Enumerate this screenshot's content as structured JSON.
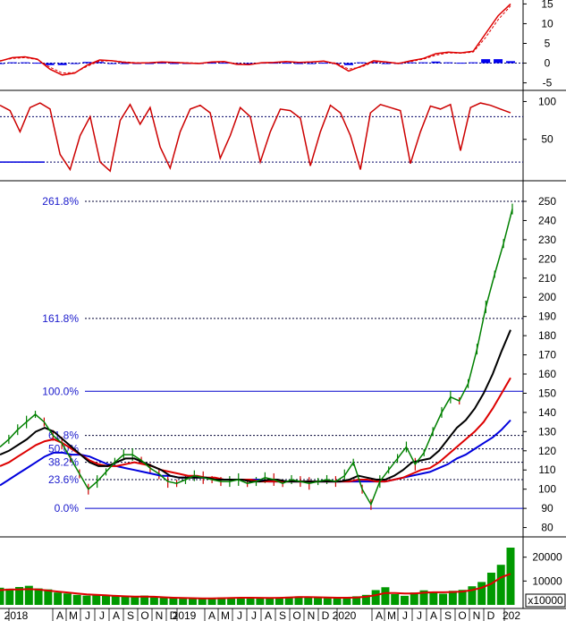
{
  "colors": {
    "price_up": "#008000",
    "price_down": "#cc0000",
    "ma_short": "#000000",
    "ma_mid": "#dd0000",
    "ma_long": "#0000dd",
    "fib_line": "#0000aa",
    "fib_text": "#1a1acc",
    "grid_dotted": "#000066",
    "volume": "#009900",
    "volume_ma": "#dd0000",
    "macd_hist": "#0000ee",
    "macd_line": "#dd0000",
    "stoch_line": "#cc0000"
  },
  "chart_data": [
    {
      "type": "line",
      "panel": "macd",
      "ylim": [
        -6,
        16
      ],
      "y_ticks": [
        "15",
        "10",
        "5",
        "0",
        "-5"
      ],
      "series": [
        {
          "role": "macd",
          "values": [
            0.5,
            1.4,
            1.6,
            1.0,
            -1.5,
            -3.0,
            -2.5,
            -0.5,
            0.8,
            0.6,
            0.2,
            0.0,
            0.1,
            0.3,
            0.2,
            0.0,
            -0.1,
            0.3,
            0.4,
            -0.3,
            -0.4,
            0.1,
            0.2,
            0.4,
            0.2,
            0.3,
            0.5,
            -0.2,
            -2.0,
            -0.8,
            0.6,
            0.3,
            -0.1,
            0.6,
            1.2,
            2.4,
            2.8,
            2.6,
            3.0,
            7.5,
            12.0,
            15.0
          ]
        },
        {
          "role": "signal",
          "values": [
            0.6,
            1.2,
            1.4,
            0.9,
            -1.0,
            -2.5,
            -2.4,
            -0.8,
            0.5,
            0.6,
            0.3,
            0.1,
            0.1,
            0.2,
            0.2,
            0.1,
            0.0,
            0.2,
            0.3,
            -0.1,
            -0.3,
            0.0,
            0.1,
            0.3,
            0.2,
            0.3,
            0.4,
            0.0,
            -1.5,
            -1.0,
            0.3,
            0.3,
            0.0,
            0.4,
            1.0,
            2.0,
            2.6,
            2.5,
            2.8,
            6.5,
            11.0,
            14.5
          ]
        },
        {
          "role": "histogram",
          "values": [
            -0.1,
            0.2,
            0.2,
            0.1,
            -0.5,
            -0.5,
            -0.1,
            0.3,
            0.3,
            0.0,
            -0.1,
            -0.1,
            0.0,
            0.1,
            0.0,
            -0.1,
            -0.1,
            0.1,
            0.1,
            -0.2,
            -0.1,
            0.1,
            0.1,
            0.1,
            0.0,
            0.0,
            0.1,
            -0.2,
            -0.5,
            0.2,
            0.3,
            0.0,
            -0.1,
            0.2,
            0.2,
            0.4,
            0.2,
            0.1,
            0.2,
            1.0,
            1.0,
            0.5
          ]
        }
      ]
    },
    {
      "type": "line",
      "panel": "stochastic",
      "ylim": [
        0,
        110
      ],
      "y_ticks": [
        "100",
        "50"
      ],
      "levels": [
        80,
        20
      ],
      "series": [
        {
          "role": "oscillator",
          "values": [
            95,
            88,
            60,
            92,
            98,
            90,
            30,
            10,
            55,
            80,
            20,
            8,
            75,
            96,
            70,
            92,
            40,
            12,
            60,
            90,
            95,
            85,
            25,
            55,
            92,
            80,
            20,
            60,
            90,
            88,
            78,
            15,
            60,
            95,
            85,
            55,
            10,
            85,
            96,
            92,
            88,
            18,
            60,
            94,
            90,
            96,
            35,
            92,
            98,
            95,
            90,
            85
          ]
        }
      ]
    },
    {
      "type": "line",
      "panel": "price",
      "ylim": [
        77,
        257
      ],
      "y_ticks": [
        "250",
        "240",
        "230",
        "220",
        "210",
        "200",
        "190",
        "180",
        "170",
        "160",
        "150",
        "140",
        "130",
        "120",
        "110",
        "100",
        "90",
        "80"
      ],
      "x_ticks": [
        "2018",
        "A",
        "M",
        "J",
        "J",
        "A",
        "S",
        "O",
        "N",
        "D",
        "2019",
        "A",
        "M",
        "J",
        "J",
        "A",
        "S",
        "O",
        "N",
        "D",
        "2020",
        "A",
        "M",
        "J",
        "J",
        "A",
        "S",
        "O",
        "N",
        "D",
        "202"
      ],
      "fibonacci": [
        {
          "label": "261.8%",
          "value": 250
        },
        {
          "label": "161.8%",
          "value": 189
        },
        {
          "label": "100.0%",
          "value": 151
        },
        {
          "label": "61.8%",
          "value": 128
        },
        {
          "label": "50.0%",
          "value": 121
        },
        {
          "label": "38.2%",
          "value": 114
        },
        {
          "label": "23.6%",
          "value": 105
        },
        {
          "label": "0.0%",
          "value": 90
        }
      ],
      "series": [
        {
          "role": "price",
          "values": [
            122,
            126,
            131,
            135,
            139,
            135,
            128,
            124,
            116,
            108,
            100,
            104,
            109,
            114,
            118,
            118,
            115,
            111,
            108,
            104,
            103,
            105,
            107,
            106,
            105,
            104,
            104,
            105,
            103,
            104,
            106,
            105,
            103,
            105,
            104,
            103,
            104,
            105,
            104,
            107,
            114,
            100,
            92,
            104,
            110,
            116,
            122,
            113,
            119,
            130,
            140,
            148,
            146,
            155,
            173,
            195,
            212,
            228,
            246
          ]
        },
        {
          "role": "ma_short",
          "values": [
            118,
            120,
            123,
            126,
            130,
            132,
            130,
            126,
            122,
            118,
            114,
            112,
            112,
            114,
            116,
            116,
            114,
            112,
            110,
            107,
            106,
            106,
            106,
            106,
            105,
            105,
            105,
            105,
            104,
            104,
            105,
            105,
            104,
            104,
            104,
            104,
            104,
            104,
            104,
            105,
            107,
            106,
            105,
            105,
            107,
            110,
            114,
            115,
            116,
            120,
            126,
            132,
            136,
            142,
            150,
            160,
            172,
            183
          ]
        },
        {
          "role": "ma_mid",
          "values": [
            112,
            114,
            117,
            120,
            123,
            125,
            126,
            124,
            121,
            118,
            115,
            113,
            112,
            112,
            113,
            114,
            113,
            112,
            110,
            109,
            108,
            107,
            107,
            106,
            106,
            105,
            105,
            105,
            105,
            104,
            104,
            104,
            104,
            104,
            104,
            104,
            104,
            104,
            104,
            104,
            105,
            105,
            104,
            104,
            105,
            106,
            108,
            110,
            111,
            114,
            118,
            122,
            126,
            130,
            135,
            142,
            150,
            158
          ]
        },
        {
          "role": "ma_long",
          "values": [
            102,
            105,
            108,
            111,
            114,
            117,
            119,
            119,
            118,
            118,
            117,
            115,
            113,
            112,
            111,
            110,
            109,
            108,
            107,
            107,
            106,
            106,
            106,
            106,
            105,
            105,
            105,
            105,
            105,
            105,
            104,
            104,
            104,
            104,
            104,
            104,
            104,
            104,
            104,
            104,
            104,
            104,
            104,
            104,
            105,
            106,
            107,
            108,
            109,
            111,
            113,
            116,
            118,
            121,
            124,
            127,
            131,
            136
          ]
        }
      ]
    },
    {
      "type": "bar",
      "panel": "volume",
      "ylim": [
        0,
        27000
      ],
      "y_ticks": [
        "20000",
        "10000"
      ],
      "unit_label": "x10000",
      "series": [
        {
          "role": "volume",
          "values": [
            7200,
            6800,
            7500,
            8000,
            6900,
            6500,
            5200,
            4800,
            4200,
            3900,
            4400,
            3800,
            3600,
            3400,
            3700,
            3900,
            3300,
            3000,
            2800,
            2600,
            2700,
            2500,
            2900,
            3100,
            2800,
            3000,
            3300,
            2900,
            2700,
            3100,
            3400,
            3600,
            3200,
            3000,
            2800,
            2900,
            3300,
            3600,
            4200,
            6200,
            7400,
            4500,
            3800,
            5200,
            6100,
            5500,
            4700,
            5900,
            6300,
            7800,
            9600,
            13500,
            16800,
            24000
          ]
        },
        {
          "role": "volume_ma",
          "values": [
            6200,
            6400,
            6500,
            6600,
            6400,
            6000,
            5600,
            5200,
            4800,
            4400,
            4200,
            4000,
            3800,
            3600,
            3500,
            3500,
            3400,
            3200,
            3000,
            2900,
            2800,
            2700,
            2700,
            2800,
            2900,
            3000,
            3000,
            2950,
            2900,
            2950,
            3100,
            3250,
            3300,
            3200,
            3100,
            3000,
            3000,
            3100,
            3400,
            4100,
            5000,
            5000,
            4800,
            4800,
            5100,
            5300,
            5300,
            5400,
            5600,
            6200,
            7200,
            8900,
            11500,
            13000
          ]
        }
      ]
    }
  ]
}
